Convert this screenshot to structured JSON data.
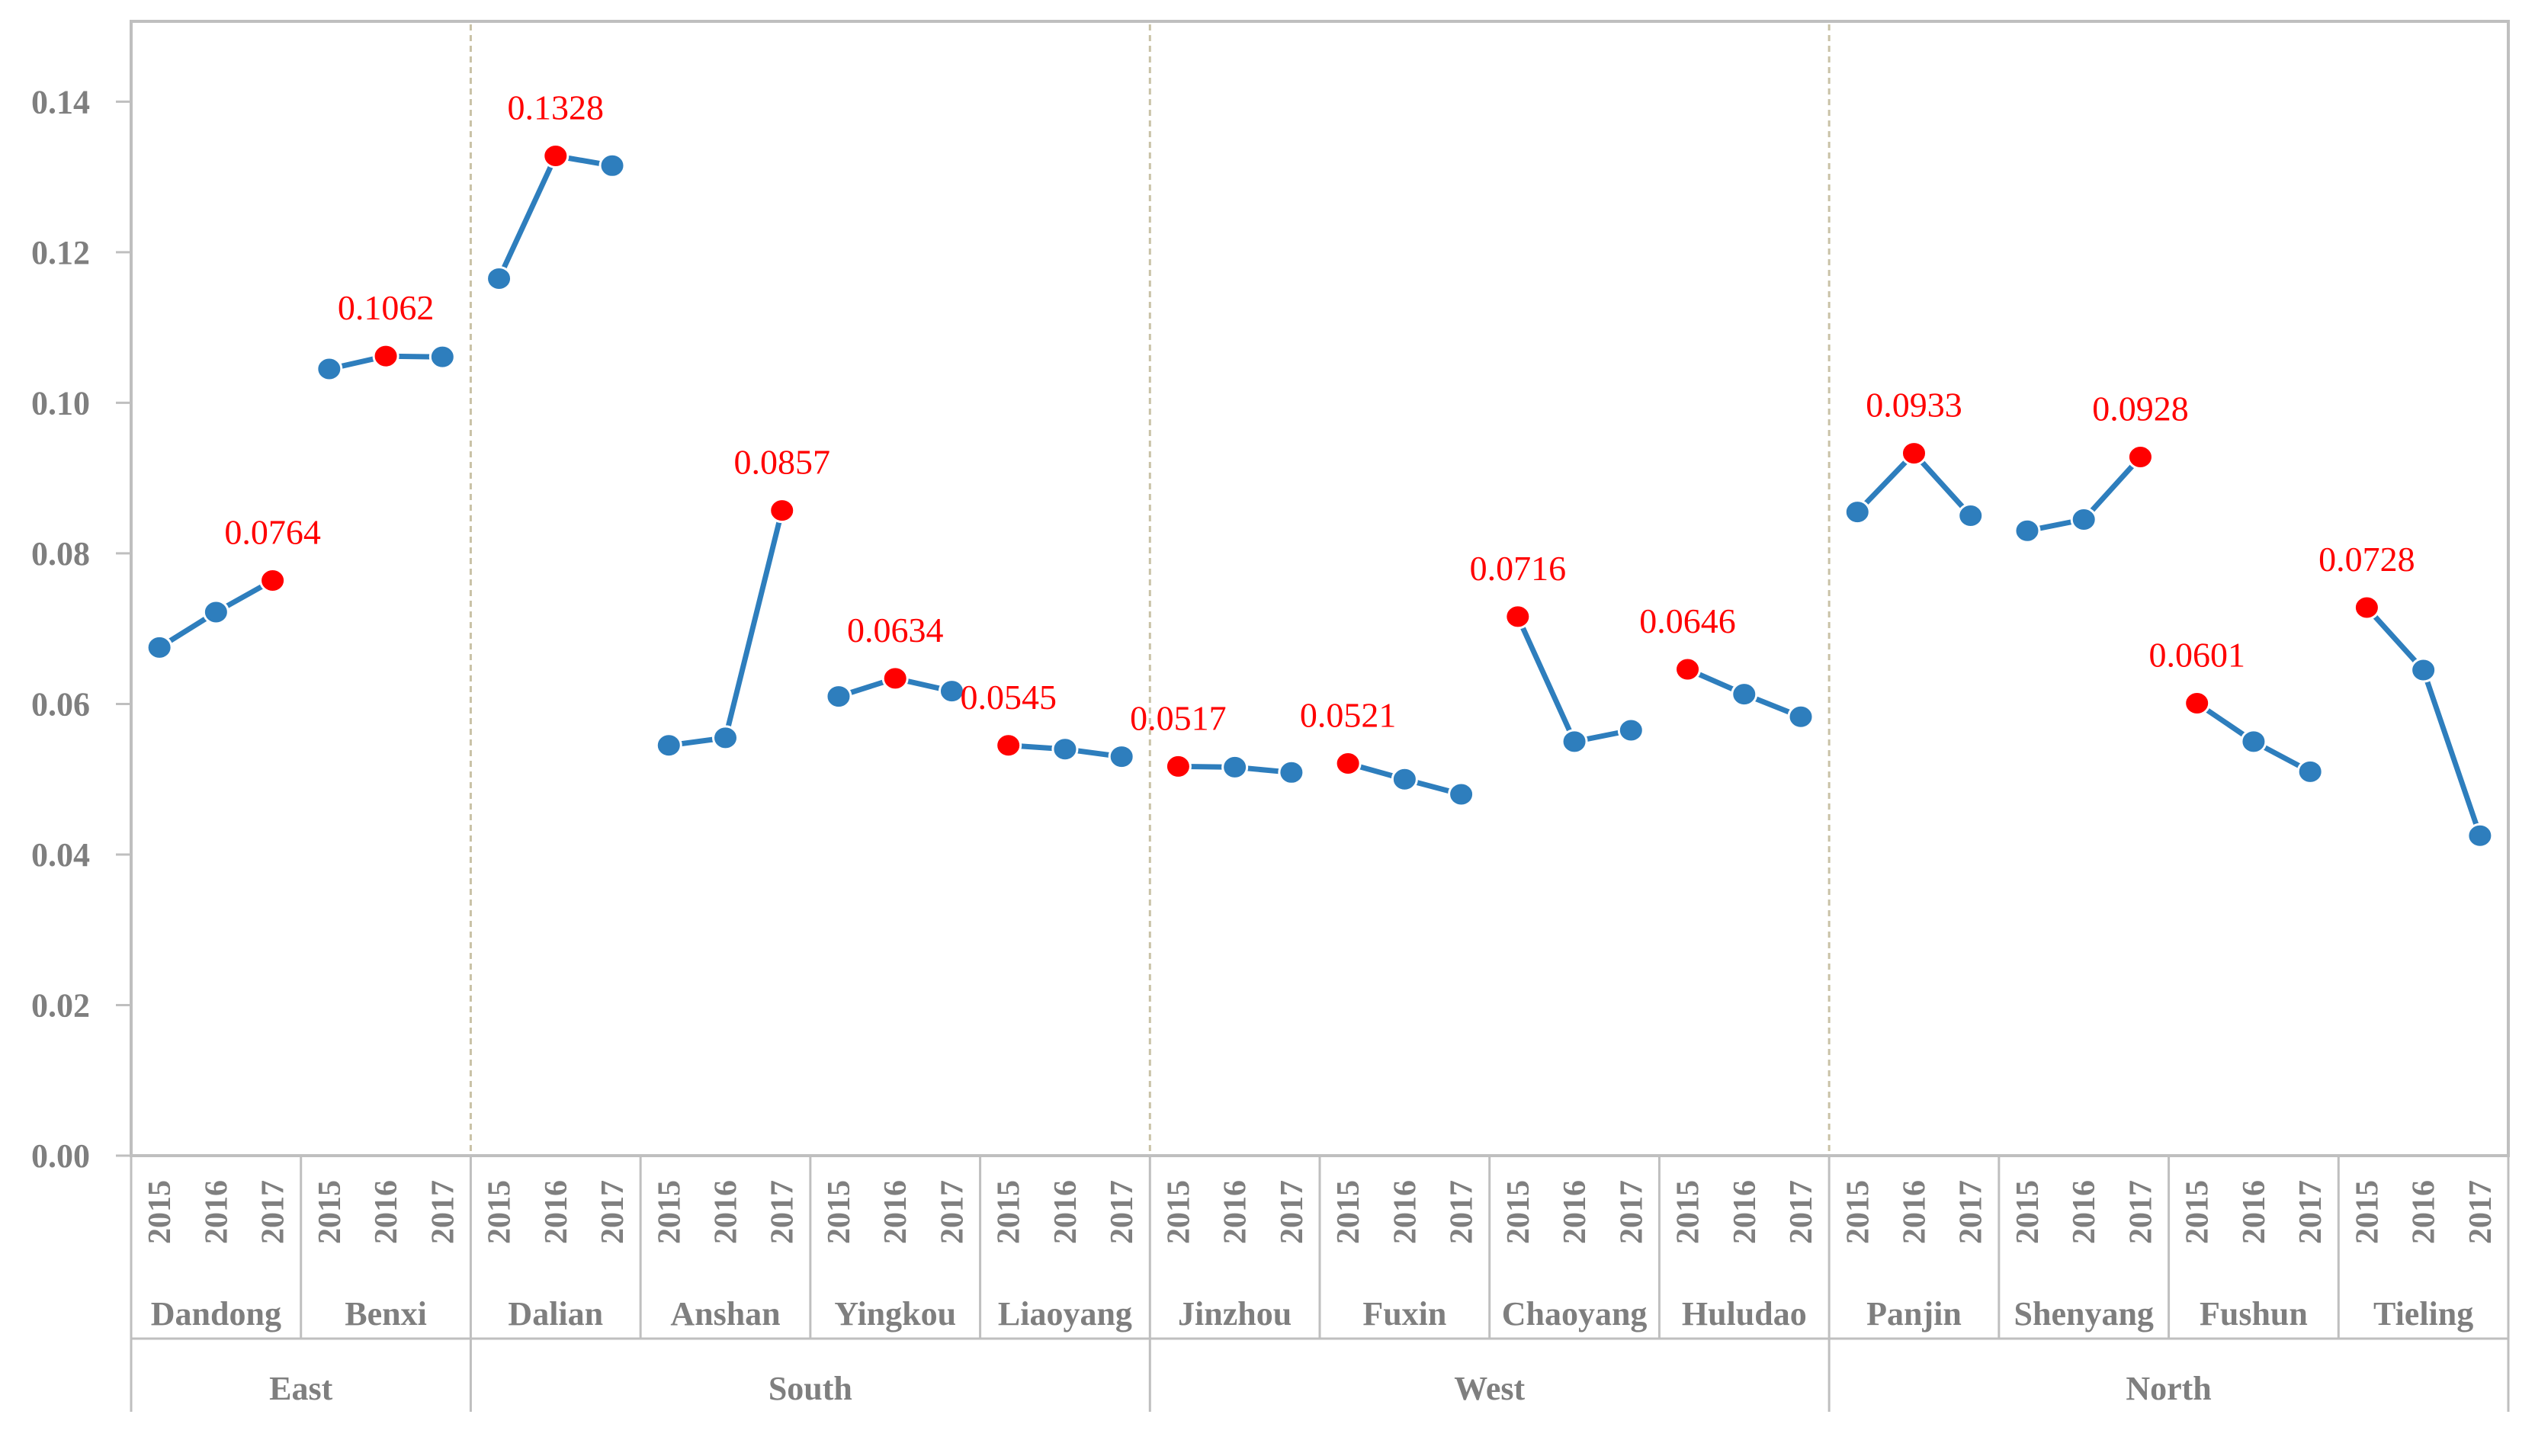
{
  "chart_data": {
    "type": "line",
    "title": "",
    "xlabel": "",
    "ylabel": "",
    "ylim": [
      0,
      0.15
    ],
    "yticks": [
      "0.00",
      "0.02",
      "0.04",
      "0.06",
      "0.08",
      "0.10",
      "0.12",
      "0.14"
    ],
    "ytick_values": [
      0,
      0.02,
      0.04,
      0.06,
      0.08,
      0.1,
      0.12,
      0.14
    ],
    "years": [
      "2015",
      "2016",
      "2017"
    ],
    "colors": {
      "line": "#2e7ebd",
      "point": "#2e7ebd",
      "highlight": "#ff0000",
      "axis": "#bfbfbf",
      "divider": "#c9c2a6",
      "text": "#7f7f7f"
    },
    "regions": [
      {
        "name": "East",
        "cities": [
          {
            "name": "Dandong",
            "values": [
              0.0675,
              0.0722,
              0.0764
            ],
            "highlight_index": 2,
            "label": "0.0764"
          },
          {
            "name": "Benxi",
            "values": [
              0.1045,
              0.1062,
              0.1061
            ],
            "highlight_index": 1,
            "label": "0.1062"
          }
        ]
      },
      {
        "name": "South",
        "cities": [
          {
            "name": "Dalian",
            "values": [
              0.1165,
              0.1328,
              0.1315
            ],
            "highlight_index": 1,
            "label": "0.1328"
          },
          {
            "name": "Anshan",
            "values": [
              0.0545,
              0.0555,
              0.0857
            ],
            "highlight_index": 2,
            "label": "0.0857"
          },
          {
            "name": "Yingkou",
            "values": [
              0.061,
              0.0634,
              0.0617
            ],
            "highlight_index": 1,
            "label": "0.0634"
          },
          {
            "name": "Liaoyang",
            "values": [
              0.0545,
              0.054,
              0.053
            ],
            "highlight_index": 0,
            "label": "0.0545"
          }
        ]
      },
      {
        "name": "West",
        "cities": [
          {
            "name": "Jinzhou",
            "values": [
              0.0517,
              0.0516,
              0.0509
            ],
            "highlight_index": 0,
            "label": "0.0517"
          },
          {
            "name": "Fuxin",
            "values": [
              0.0521,
              0.05,
              0.048
            ],
            "highlight_index": 0,
            "label": "0.0521"
          },
          {
            "name": "Chaoyang",
            "values": [
              0.0716,
              0.055,
              0.0565
            ],
            "highlight_index": 0,
            "label": "0.0716"
          },
          {
            "name": "Huludao",
            "values": [
              0.0646,
              0.0613,
              0.0583
            ],
            "highlight_index": 0,
            "label": "0.0646"
          }
        ]
      },
      {
        "name": "North",
        "cities": [
          {
            "name": "Panjin",
            "values": [
              0.0855,
              0.0933,
              0.085
            ],
            "highlight_index": 1,
            "label": "0.0933"
          },
          {
            "name": "Shenyang",
            "values": [
              0.083,
              0.0845,
              0.0928
            ],
            "highlight_index": 2,
            "label": "0.0928"
          },
          {
            "name": "Fushun",
            "values": [
              0.0601,
              0.055,
              0.051
            ],
            "highlight_index": 0,
            "label": "0.0601"
          },
          {
            "name": "Tieling",
            "values": [
              0.0728,
              0.0645,
              0.0425
            ],
            "highlight_index": 0,
            "label": "0.0728"
          }
        ]
      }
    ]
  }
}
